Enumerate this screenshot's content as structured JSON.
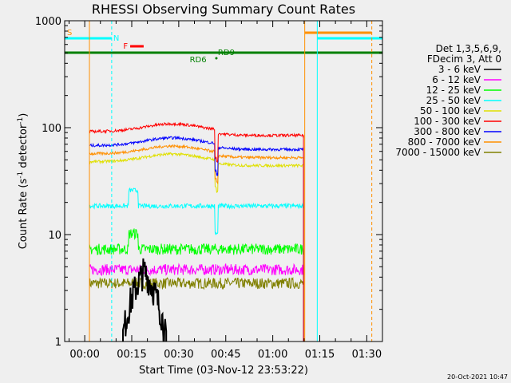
{
  "chart_data": {
    "type": "line",
    "title": "RHESSI Observing Summary Count Rates",
    "xlabel": "Start Time (03-Nov-12 23:53:22)",
    "ylabel_main": "Count Rate (s",
    "ylabel_sup1": "-1",
    "ylabel_mid": " detector",
    "ylabel_sup2": "-1",
    "ylabel_end": ")",
    "y_scale": "log",
    "ylim": [
      1,
      1000
    ],
    "xlim_minutes": [
      -6.4,
      95
    ],
    "y_ticks": [
      {
        "value": 1,
        "label": "1"
      },
      {
        "value": 10,
        "label": "10"
      },
      {
        "value": 100,
        "label": "100"
      },
      {
        "value": 1000,
        "label": "1000"
      }
    ],
    "x_ticks": [
      {
        "minutes": 0,
        "label": "00:00"
      },
      {
        "minutes": 15,
        "label": "00:15"
      },
      {
        "minutes": 30,
        "label": "00:30"
      },
      {
        "minutes": 45,
        "label": "00:45"
      },
      {
        "minutes": 60,
        "label": "01:00"
      },
      {
        "minutes": 75,
        "label": "01:15"
      },
      {
        "minutes": 90,
        "label": "01:30"
      }
    ],
    "legend_title1": "Det 1,3,5,6,9,",
    "legend_title2": "FDecim 3, Att 0",
    "legend_position": "right",
    "series": [
      {
        "name": "3 - 6 keV",
        "color": "#000000",
        "level": 1.0,
        "start": 12.2,
        "end": 26.0,
        "noise": 0.35
      },
      {
        "name": "6 - 12 keV",
        "color": "#ff00ff",
        "level": 4.7,
        "start": 1.5,
        "end": 69.8,
        "noise": 0.12
      },
      {
        "name": "12 - 25 keV",
        "color": "#00ff00",
        "level": 7.3,
        "start": 1.5,
        "end": 69.8,
        "noise": 0.12
      },
      {
        "name": "25 - 50 keV",
        "color": "#00ffff",
        "level": 18.5,
        "start": 1.5,
        "end": 69.8,
        "noise": 0.05
      },
      {
        "name": "50 - 100 keV",
        "color": "#e0e000",
        "level": 48,
        "start": 1.5,
        "end": 69.8,
        "noise": 0.03
      },
      {
        "name": "100 - 300 keV",
        "color": "#ff0000",
        "level": 92,
        "start": 1.5,
        "end": 69.8,
        "noise": 0.03
      },
      {
        "name": "300 - 800 keV",
        "color": "#0000ff",
        "level": 68,
        "start": 1.5,
        "end": 69.8,
        "noise": 0.03
      },
      {
        "name": "800 - 7000 keV",
        "color": "#ff9000",
        "level": 57,
        "start": 1.5,
        "end": 69.8,
        "noise": 0.03
      },
      {
        "name": "7000 - 15000 keV",
        "color": "#808000",
        "level": 3.5,
        "start": 1.5,
        "end": 69.8,
        "noise": 0.12
      }
    ],
    "flags": [
      {
        "label": "S",
        "color": "#ff9000"
      },
      {
        "label": "N",
        "color": "#00ffff"
      },
      {
        "label": "F",
        "color": "#ff0000"
      },
      {
        "label": "RD6",
        "color": "#008000"
      },
      {
        "label": "RD9",
        "color": "#008000"
      }
    ],
    "timestamp": "20-Oct-2021 10:47"
  }
}
